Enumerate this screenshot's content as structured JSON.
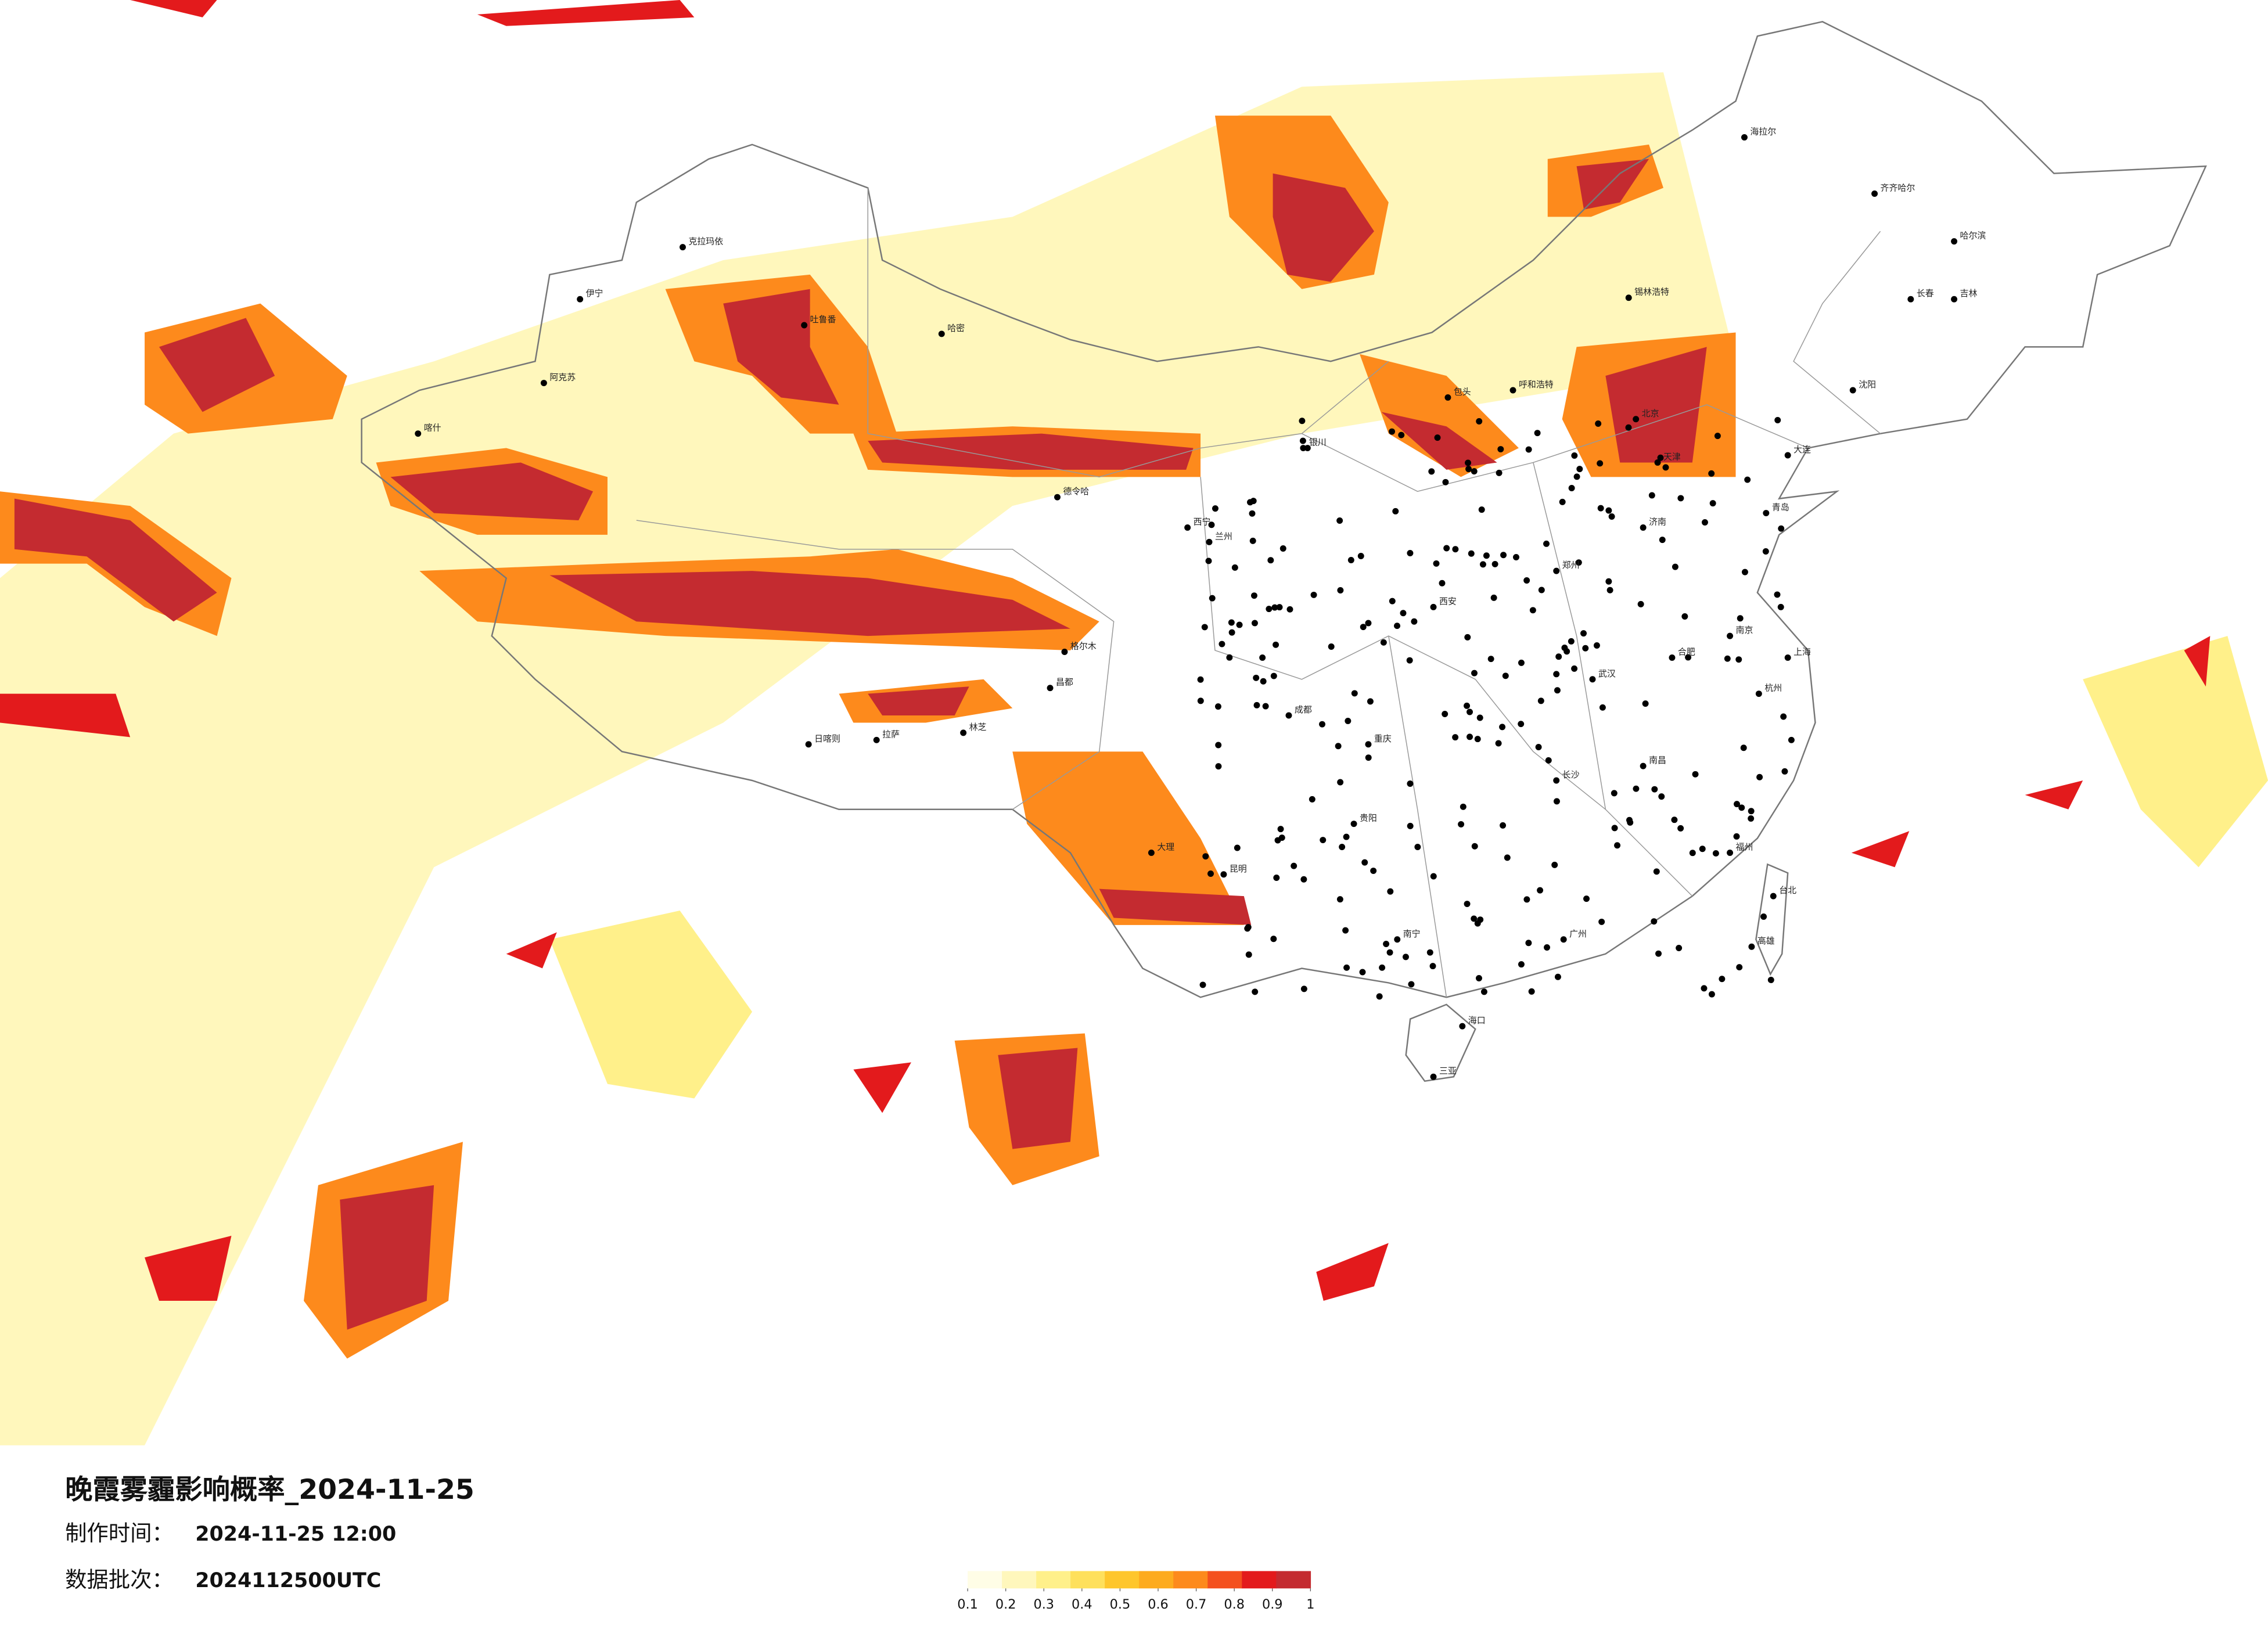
{
  "title": "晚霞雾霾影响概率_2024-11-25",
  "made_label": "制作时间：",
  "made_time": "2024-11-25 12:00",
  "batch_label": "数据批次：",
  "batch": "2024112500UTC",
  "legend": {
    "ticks": [
      0.1,
      0.2,
      0.3,
      0.4,
      0.5,
      0.6,
      0.7,
      0.8,
      0.9,
      1
    ],
    "colors": [
      "#fffde6",
      "#fff7bc",
      "#fff08a",
      "#fee05c",
      "#fec62c",
      "#fdab1e",
      "#fd8a1c",
      "#f4501e",
      "#e31a1c",
      "#c42b30"
    ]
  },
  "cities": [
    "克拉玛依",
    "伊宁",
    "阿克苏",
    "喀什",
    "哈密",
    "吐鲁番",
    "格尔木",
    "德令哈",
    "拉萨",
    "日喀则",
    "林芝",
    "昌都",
    "西宁",
    "兰州",
    "银川",
    "呼和浩特",
    "包头",
    "锡林浩特",
    "海拉尔",
    "齐齐哈尔",
    "哈尔滨",
    "长春",
    "吉林",
    "沈阳",
    "大连",
    "北京",
    "天津",
    "济南",
    "青岛",
    "郑州",
    "西安",
    "成都",
    "重庆",
    "贵阳",
    "昆明",
    "大理",
    "南宁",
    "广州",
    "长沙",
    "武汉",
    "南昌",
    "福州",
    "杭州",
    "南京",
    "上海",
    "合肥",
    "海口",
    "三亚",
    "台北",
    "高雄"
  ]
}
